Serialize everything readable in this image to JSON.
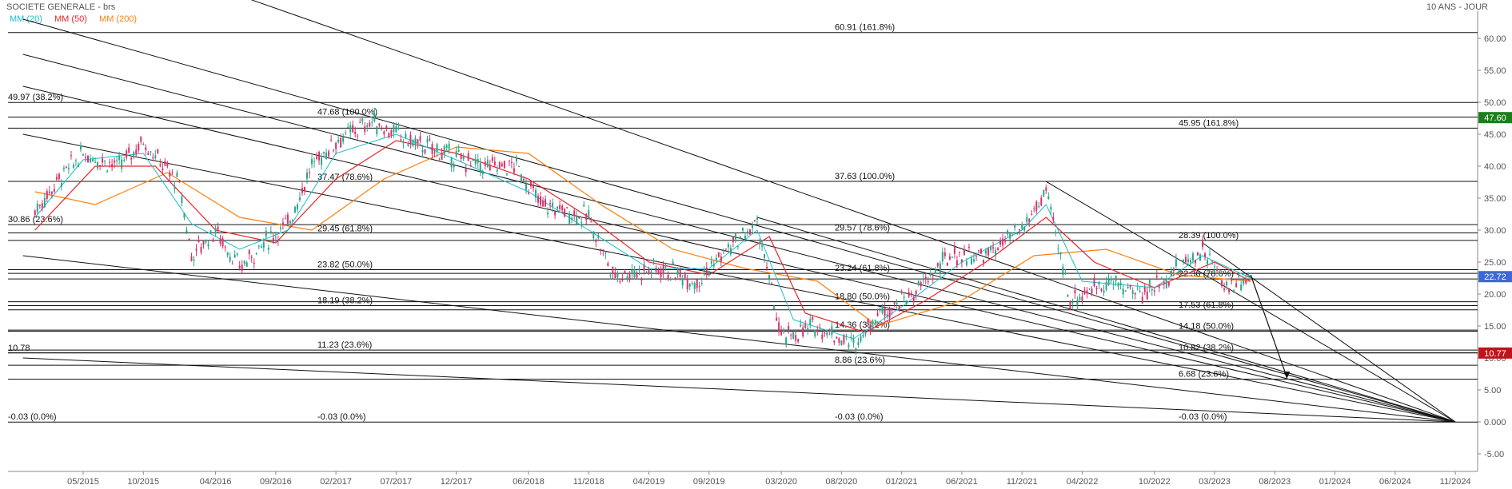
{
  "header": {
    "title": "SOCIETE GENERALE - brs",
    "period": "10 ANS - JOUR"
  },
  "chart_data": {
    "type": "candlestick",
    "legend": [
      {
        "label": "MM (20)",
        "color": "#17becf"
      },
      {
        "label": "MM (50)",
        "color": "#e6252a"
      },
      {
        "label": "MM (200)",
        "color": "#ff7f0e"
      }
    ],
    "x_ticks": [
      "05/2015",
      "10/2015",
      "04/2016",
      "09/2016",
      "02/2017",
      "07/2017",
      "12/2017",
      "06/2018",
      "11/2018",
      "04/2019",
      "09/2019",
      "03/2020",
      "08/2020",
      "01/2021",
      "06/2021",
      "11/2021",
      "04/2022",
      "10/2022",
      "03/2023",
      "08/2023",
      "01/2024",
      "06/2024",
      "11/2024"
    ],
    "y_ticks": [
      "60.00",
      "55.00",
      "50.00",
      "45.00",
      "40.00",
      "35.00",
      "30.00",
      "25.00",
      "20.00",
      "15.00",
      "10.00",
      "5.00",
      "0.000",
      "-5.00"
    ],
    "ylim": [
      -7.5,
      65.5
    ],
    "price_badges": [
      {
        "value": 47.6,
        "label": "47.60",
        "color": "#1a7f1a"
      },
      {
        "value": 22.72,
        "label": "22.72",
        "color": "#3f67d6"
      },
      {
        "value": 10.77,
        "label": "10.77",
        "color": "#c0141c"
      }
    ],
    "price_series": [
      {
        "date": "2015-01",
        "value": 33
      },
      {
        "date": "2015-03",
        "value": 38
      },
      {
        "date": "2015-05",
        "value": 42
      },
      {
        "date": "2015-08",
        "value": 40
      },
      {
        "date": "2015-10",
        "value": 44
      },
      {
        "date": "2016-01",
        "value": 37
      },
      {
        "date": "2016-02",
        "value": 26
      },
      {
        "date": "2016-04",
        "value": 30
      },
      {
        "date": "2016-06",
        "value": 24
      },
      {
        "date": "2016-08",
        "value": 28
      },
      {
        "date": "2016-10",
        "value": 31
      },
      {
        "date": "2016-12",
        "value": 40
      },
      {
        "date": "2017-02",
        "value": 44
      },
      {
        "date": "2017-05",
        "value": 47
      },
      {
        "date": "2017-08",
        "value": 44
      },
      {
        "date": "2017-11",
        "value": 42
      },
      {
        "date": "2018-02",
        "value": 40
      },
      {
        "date": "2018-05",
        "value": 40
      },
      {
        "date": "2018-07",
        "value": 34
      },
      {
        "date": "2018-11",
        "value": 32
      },
      {
        "date": "2019-01",
        "value": 23
      },
      {
        "date": "2019-05",
        "value": 24
      },
      {
        "date": "2019-08",
        "value": 22
      },
      {
        "date": "2019-10",
        "value": 26
      },
      {
        "date": "2020-01",
        "value": 31
      },
      {
        "date": "2020-03",
        "value": 13
      },
      {
        "date": "2020-06",
        "value": 15
      },
      {
        "date": "2020-09",
        "value": 12
      },
      {
        "date": "2020-11",
        "value": 17
      },
      {
        "date": "2021-02",
        "value": 20
      },
      {
        "date": "2021-05",
        "value": 26
      },
      {
        "date": "2021-08",
        "value": 26
      },
      {
        "date": "2021-11",
        "value": 30
      },
      {
        "date": "2022-01",
        "value": 36
      },
      {
        "date": "2022-03",
        "value": 19
      },
      {
        "date": "2022-06",
        "value": 22
      },
      {
        "date": "2022-09",
        "value": 20
      },
      {
        "date": "2022-12",
        "value": 24
      },
      {
        "date": "2023-02",
        "value": 27
      },
      {
        "date": "2023-04",
        "value": 21
      },
      {
        "date": "2023-06",
        "value": 23
      }
    ],
    "ma20": [
      {
        "date": "2015-01",
        "value": 32
      },
      {
        "date": "2015-05",
        "value": 41
      },
      {
        "date": "2015-10",
        "value": 42
      },
      {
        "date": "2016-02",
        "value": 31
      },
      {
        "date": "2016-06",
        "value": 27
      },
      {
        "date": "2016-10",
        "value": 30
      },
      {
        "date": "2017-02",
        "value": 42
      },
      {
        "date": "2017-07",
        "value": 45
      },
      {
        "date": "2017-12",
        "value": 41
      },
      {
        "date": "2018-06",
        "value": 36
      },
      {
        "date": "2018-11",
        "value": 30
      },
      {
        "date": "2019-04",
        "value": 24
      },
      {
        "date": "2019-09",
        "value": 24
      },
      {
        "date": "2020-01",
        "value": 30
      },
      {
        "date": "2020-04",
        "value": 16
      },
      {
        "date": "2020-09",
        "value": 13
      },
      {
        "date": "2021-01",
        "value": 18
      },
      {
        "date": "2021-06",
        "value": 25
      },
      {
        "date": "2021-11",
        "value": 30
      },
      {
        "date": "2022-01",
        "value": 34
      },
      {
        "date": "2022-04",
        "value": 22
      },
      {
        "date": "2022-10",
        "value": 21
      },
      {
        "date": "2023-02",
        "value": 26
      },
      {
        "date": "2023-06",
        "value": 22.5
      }
    ],
    "ma50": [
      {
        "date": "2015-01",
        "value": 30
      },
      {
        "date": "2015-06",
        "value": 40
      },
      {
        "date": "2015-11",
        "value": 40
      },
      {
        "date": "2016-04",
        "value": 30
      },
      {
        "date": "2016-09",
        "value": 28
      },
      {
        "date": "2017-02",
        "value": 38
      },
      {
        "date": "2017-07",
        "value": 44
      },
      {
        "date": "2017-12",
        "value": 42
      },
      {
        "date": "2018-06",
        "value": 38
      },
      {
        "date": "2018-11",
        "value": 32
      },
      {
        "date": "2019-04",
        "value": 25
      },
      {
        "date": "2019-09",
        "value": 23
      },
      {
        "date": "2020-02",
        "value": 29
      },
      {
        "date": "2020-05",
        "value": 17
      },
      {
        "date": "2020-10",
        "value": 14
      },
      {
        "date": "2021-03",
        "value": 19
      },
      {
        "date": "2021-08",
        "value": 25
      },
      {
        "date": "2022-01",
        "value": 32
      },
      {
        "date": "2022-05",
        "value": 25
      },
      {
        "date": "2022-10",
        "value": 21
      },
      {
        "date": "2023-03",
        "value": 25
      },
      {
        "date": "2023-06",
        "value": 22
      }
    ],
    "ma200": [
      {
        "date": "2015-01",
        "value": 36
      },
      {
        "date": "2015-06",
        "value": 34
      },
      {
        "date": "2015-12",
        "value": 39
      },
      {
        "date": "2016-06",
        "value": 32
      },
      {
        "date": "2016-12",
        "value": 30
      },
      {
        "date": "2017-06",
        "value": 38
      },
      {
        "date": "2017-12",
        "value": 43
      },
      {
        "date": "2018-06",
        "value": 42
      },
      {
        "date": "2018-12",
        "value": 34
      },
      {
        "date": "2019-06",
        "value": 27
      },
      {
        "date": "2019-12",
        "value": 24
      },
      {
        "date": "2020-06",
        "value": 22
      },
      {
        "date": "2020-11",
        "value": 15
      },
      {
        "date": "2021-06",
        "value": 19
      },
      {
        "date": "2021-12",
        "value": 26
      },
      {
        "date": "2022-06",
        "value": 27
      },
      {
        "date": "2022-12",
        "value": 23
      },
      {
        "date": "2023-06",
        "value": 22
      }
    ],
    "horizontal_levels": [
      60.91,
      49.97,
      47.68,
      45.95,
      37.63,
      30.86,
      29.57,
      28.39,
      23.82,
      23.24,
      22.36,
      18.8,
      18.19,
      17.53,
      14.36,
      14.18,
      11.23,
      10.82,
      10.78,
      8.86,
      6.68,
      -0.03
    ],
    "level_labels": [
      {
        "text": "60.91  (161.8%)",
        "value": 60.91,
        "group": 3
      },
      {
        "text": "49.97  (38.2%)",
        "value": 49.97,
        "group": 1
      },
      {
        "text": "47.68  (100.0%)",
        "value": 47.68,
        "group": 2
      },
      {
        "text": "45.95  (161.8%)",
        "value": 45.95,
        "group": 4
      },
      {
        "text": "37.47  (78.6%)",
        "value": 37.47,
        "group": 2
      },
      {
        "text": "37.63  (100.0%)",
        "value": 37.63,
        "group": 3
      },
      {
        "text": "30.86  (23.6%)",
        "value": 30.86,
        "group": 1
      },
      {
        "text": "29.45  (61.8%)",
        "value": 29.45,
        "group": 2
      },
      {
        "text": "29.57  (78.6%)",
        "value": 29.57,
        "group": 3
      },
      {
        "text": "28.39  (100.0%)",
        "value": 28.39,
        "group": 4
      },
      {
        "text": "23.82  (50.0%)",
        "value": 23.82,
        "group": 2
      },
      {
        "text": "23.24  (61.8%)",
        "value": 23.24,
        "group": 3
      },
      {
        "text": "22.36  (78.6%)",
        "value": 22.36,
        "group": 4
      },
      {
        "text": "18.19  (38.2%)",
        "value": 18.19,
        "group": 2
      },
      {
        "text": "18.80  (50.0%)",
        "value": 18.8,
        "group": 3
      },
      {
        "text": "17.53  (61.8%)",
        "value": 17.53,
        "group": 4
      },
      {
        "text": "14.36  (38.2%)",
        "value": 14.36,
        "group": 3
      },
      {
        "text": "14.18  (50.0%)",
        "value": 14.18,
        "group": 4
      },
      {
        "text": "10.78",
        "value": 10.78,
        "group": 1
      },
      {
        "text": "11.23  (23.6%)",
        "value": 11.23,
        "group": 2
      },
      {
        "text": "10.82  (38.2%)",
        "value": 10.82,
        "group": 4
      },
      {
        "text": "8.86  (23.6%)",
        "value": 8.86,
        "group": 3
      },
      {
        "text": "6.68  (23.6%)",
        "value": 6.68,
        "group": 4
      },
      {
        "text": "-0.03  (0.0%)",
        "value": -0.03,
        "group": 1
      },
      {
        "text": "-0.03  (0.0%)",
        "value": -0.03,
        "group": 2
      },
      {
        "text": "-0.03  (0.0%)",
        "value": -0.03,
        "group": 3
      },
      {
        "text": "-0.03  (0.0%)",
        "value": -0.03,
        "group": 4
      }
    ],
    "trend_lines": [
      {
        "from": {
          "date": "2014-12",
          "value": 63
        },
        "to": {
          "date": "2024-11",
          "value": 0
        }
      },
      {
        "from": {
          "date": "2014-12",
          "value": 57.5
        },
        "to": {
          "date": "2024-11",
          "value": 0
        }
      },
      {
        "from": {
          "date": "2014-12",
          "value": 52.5
        },
        "to": {
          "date": "2024-11",
          "value": 0
        }
      },
      {
        "from": {
          "date": "2014-12",
          "value": 45
        },
        "to": {
          "date": "2024-11",
          "value": 0
        }
      },
      {
        "from": {
          "date": "2014-12",
          "value": 26
        },
        "to": {
          "date": "2024-11",
          "value": 0
        }
      },
      {
        "from": {
          "date": "2014-12",
          "value": 10
        },
        "to": {
          "date": "2024-11",
          "value": 0
        }
      },
      {
        "from": {
          "date": "2016-04",
          "value": 68
        },
        "to": {
          "date": "2024-11",
          "value": 0
        }
      },
      {
        "from": {
          "date": "2020-01",
          "value": 32
        },
        "to": {
          "date": "2024-11",
          "value": 0
        }
      },
      {
        "from": {
          "date": "2022-01",
          "value": 37.6
        },
        "to": {
          "date": "2024-11",
          "value": 0
        }
      },
      {
        "from": {
          "date": "2023-02",
          "value": 28
        },
        "to": {
          "date": "2024-11",
          "value": 0
        }
      }
    ],
    "forecast_arrow": {
      "from": {
        "date": "2023-06",
        "value": 23
      },
      "to": {
        "date": "2023-09",
        "value": 7
      }
    }
  }
}
